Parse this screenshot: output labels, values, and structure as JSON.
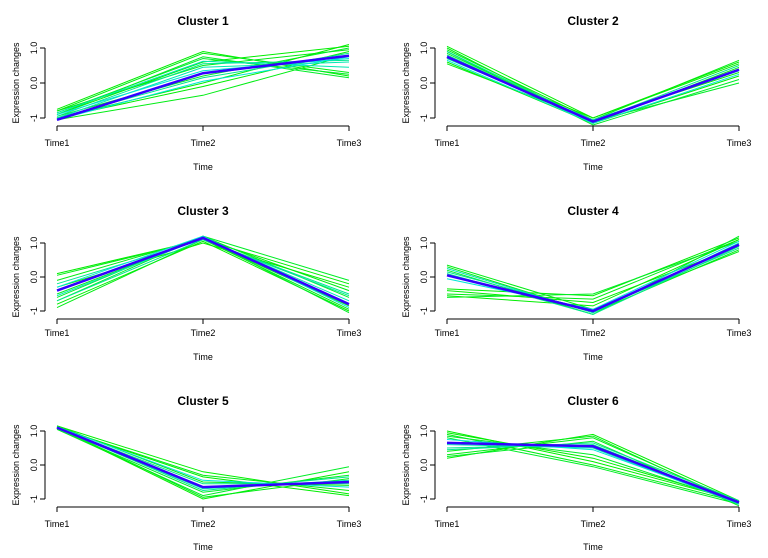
{
  "colors": {
    "membership_low": "#00ee00",
    "membership_high": "#00e5ee",
    "centroid": "#3300ff"
  },
  "chart_data": [
    {
      "type": "line",
      "title": "Cluster 1",
      "xlabel": "Time",
      "ylabel": "Expression changes",
      "categories": [
        "Time1",
        "Time2",
        "Time3"
      ],
      "ylim": [
        -1,
        1
      ],
      "yticks": [
        -1,
        0,
        1
      ],
      "ytick_labels": [
        "-1",
        "0.0",
        "1.0"
      ],
      "centroid": [
        -1.05,
        0.28,
        0.78
      ],
      "series_green": [
        [
          -0.75,
          0.9,
          0.2
        ],
        [
          -0.8,
          0.85,
          0.3
        ],
        [
          -0.85,
          0.7,
          0.25
        ],
        [
          -0.9,
          0.6,
          1.05
        ],
        [
          -0.8,
          0.5,
          0.95
        ],
        [
          -0.95,
          0.2,
          1.0
        ],
        [
          -1.0,
          -0.1,
          0.9
        ],
        [
          -1.05,
          -0.35,
          0.8
        ],
        [
          -0.9,
          0.75,
          0.15
        ],
        [
          -1.0,
          0.0,
          1.1
        ]
      ],
      "series_cyan": [
        [
          -0.95,
          0.55,
          0.65
        ],
        [
          -1.0,
          0.45,
          0.6
        ],
        [
          -0.9,
          0.35,
          0.7
        ],
        [
          -1.0,
          0.15,
          0.85
        ],
        [
          -0.85,
          0.62,
          0.45
        ],
        [
          -1.05,
          0.05,
          0.75
        ]
      ]
    },
    {
      "type": "line",
      "title": "Cluster 2",
      "xlabel": "Time",
      "ylabel": "Expression changes",
      "categories": [
        "Time1",
        "Time2",
        "Time3"
      ],
      "ylim": [
        -1,
        1
      ],
      "yticks": [
        -1,
        0,
        1
      ],
      "ytick_labels": [
        "-1",
        "0.0",
        "1.0"
      ],
      "centroid": [
        0.75,
        -1.1,
        0.38
      ],
      "series_green": [
        [
          1.05,
          -1.0,
          0.55
        ],
        [
          0.95,
          -1.05,
          0.65
        ],
        [
          0.85,
          -1.1,
          0.0
        ],
        [
          0.6,
          -1.15,
          0.2
        ],
        [
          0.55,
          -1.05,
          0.3
        ],
        [
          0.9,
          -1.2,
          0.1
        ],
        [
          0.7,
          -1.0,
          0.6
        ],
        [
          1.0,
          -1.15,
          0.45
        ]
      ],
      "series_cyan": [
        [
          0.8,
          -1.1,
          0.5
        ],
        [
          0.7,
          -1.05,
          0.35
        ],
        [
          0.65,
          -1.15,
          0.25
        ],
        [
          0.9,
          -1.1,
          0.4
        ]
      ]
    },
    {
      "type": "line",
      "title": "Cluster 3",
      "xlabel": "Time",
      "ylabel": "Expression changes",
      "categories": [
        "Time1",
        "Time2",
        "Time3"
      ],
      "ylim": [
        -1,
        1
      ],
      "yticks": [
        -1,
        0,
        1
      ],
      "ytick_labels": [
        "-1",
        "0.0",
        "1.0"
      ],
      "centroid": [
        -0.4,
        1.15,
        -0.8
      ],
      "series_green": [
        [
          0.1,
          1.1,
          -0.2
        ],
        [
          -0.1,
          1.15,
          -0.4
        ],
        [
          -0.6,
          1.2,
          -0.1
        ],
        [
          -0.8,
          1.05,
          -1.0
        ],
        [
          -0.9,
          1.1,
          -0.95
        ],
        [
          -0.7,
          1.2,
          -0.6
        ],
        [
          -0.3,
          1.0,
          -0.3
        ],
        [
          0.05,
          1.1,
          -0.85
        ],
        [
          -0.5,
          1.15,
          -1.05
        ]
      ],
      "series_cyan": [
        [
          -0.2,
          1.1,
          -0.5
        ],
        [
          -0.55,
          1.15,
          -0.7
        ],
        [
          -0.3,
          1.2,
          -0.9
        ],
        [
          -0.7,
          1.1,
          -0.55
        ]
      ]
    },
    {
      "type": "line",
      "title": "Cluster 4",
      "xlabel": "Time",
      "ylabel": "Expression changes",
      "categories": [
        "Time1",
        "Time2",
        "Time3"
      ],
      "ylim": [
        -1,
        1
      ],
      "yticks": [
        -1,
        0,
        1
      ],
      "ytick_labels": [
        "-1",
        "0.0",
        "1.0"
      ],
      "centroid": [
        0.05,
        -1.0,
        0.95
      ],
      "series_green": [
        [
          -0.35,
          -0.55,
          1.15
        ],
        [
          -0.5,
          -0.65,
          1.1
        ],
        [
          -0.6,
          -0.5,
          1.05
        ],
        [
          -0.4,
          -0.75,
          0.9
        ],
        [
          0.3,
          -1.05,
          0.8
        ],
        [
          0.2,
          -1.1,
          1.2
        ],
        [
          -0.55,
          -0.85,
          1.1
        ],
        [
          0.35,
          -0.95,
          0.75
        ]
      ],
      "series_cyan": [
        [
          0.15,
          -1.0,
          0.85
        ],
        [
          0.25,
          -1.05,
          1.0
        ],
        [
          -0.05,
          -0.95,
          1.05
        ],
        [
          0.1,
          -1.1,
          0.9
        ]
      ]
    },
    {
      "type": "line",
      "title": "Cluster 5",
      "xlabel": "Time",
      "ylabel": "Expression changes",
      "categories": [
        "Time1",
        "Time2",
        "Time3"
      ],
      "ylim": [
        -1,
        1
      ],
      "yticks": [
        -1,
        0,
        1
      ],
      "ytick_labels": [
        "-1",
        "0.0",
        "1.0"
      ],
      "centroid": [
        1.1,
        -0.65,
        -0.5
      ],
      "series_green": [
        [
          1.15,
          -0.2,
          -0.85
        ],
        [
          1.1,
          -0.3,
          -0.75
        ],
        [
          1.05,
          -0.9,
          -0.05
        ],
        [
          1.1,
          -1.0,
          -0.2
        ],
        [
          1.15,
          -0.5,
          -0.6
        ],
        [
          1.05,
          -0.8,
          -0.3
        ],
        [
          1.1,
          -0.35,
          -0.9
        ],
        [
          1.12,
          -0.95,
          -0.4
        ]
      ],
      "series_cyan": [
        [
          1.1,
          -0.55,
          -0.55
        ],
        [
          1.08,
          -0.7,
          -0.45
        ],
        [
          1.12,
          -0.45,
          -0.65
        ],
        [
          1.1,
          -0.75,
          -0.35
        ]
      ]
    },
    {
      "type": "line",
      "title": "Cluster 6",
      "xlabel": "Time",
      "ylabel": "Expression changes",
      "categories": [
        "Time1",
        "Time2",
        "Time3"
      ],
      "ylim": [
        -1,
        1
      ],
      "yticks": [
        -1,
        0,
        1
      ],
      "ytick_labels": [
        "-1",
        "0.0",
        "1.0"
      ],
      "centroid": [
        0.65,
        0.55,
        -1.1
      ],
      "series_green": [
        [
          1.0,
          0.1,
          -1.05
        ],
        [
          0.9,
          0.0,
          -1.1
        ],
        [
          0.8,
          -0.05,
          -1.15
        ],
        [
          0.2,
          0.9,
          -1.05
        ],
        [
          0.3,
          0.8,
          -1.1
        ],
        [
          0.25,
          0.7,
          -1.2
        ],
        [
          0.95,
          0.2,
          -1.05
        ],
        [
          0.4,
          0.85,
          -1.15
        ],
        [
          0.85,
          0.3,
          -1.1
        ]
      ],
      "series_cyan": [
        [
          0.5,
          0.6,
          -1.1
        ],
        [
          0.6,
          0.5,
          -1.15
        ],
        [
          0.75,
          0.45,
          -1.1
        ],
        [
          0.45,
          0.65,
          -1.05
        ]
      ]
    }
  ]
}
